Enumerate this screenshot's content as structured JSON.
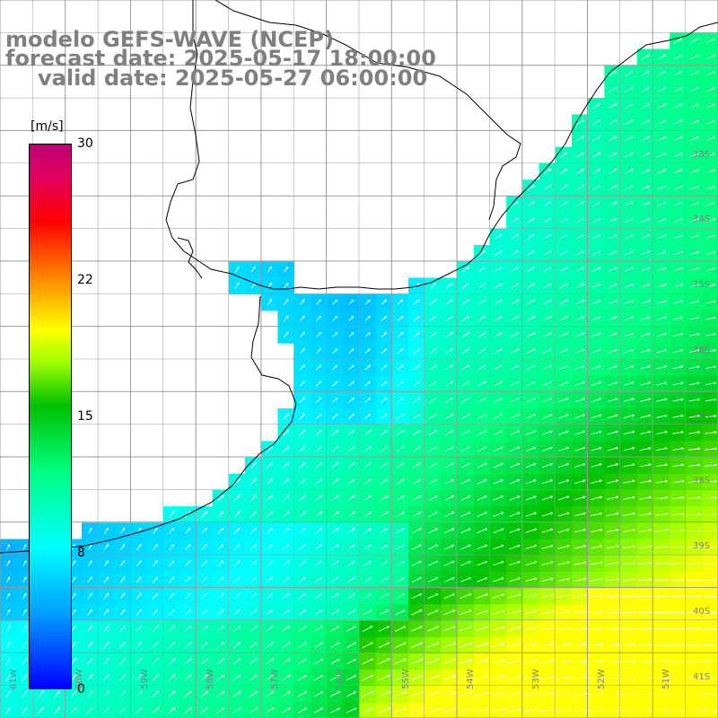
{
  "header": {
    "model": "modelo GEFS-WAVE (NCEP)",
    "forecast": "forecast date: 2025-05-17 18:00:00",
    "valid": "valid date: 2025-05-27 06:00:00"
  },
  "colorbar": {
    "unit": "[m/s]",
    "ticks": [
      {
        "value": 30,
        "label": "30"
      },
      {
        "value": 22,
        "label": "22"
      },
      {
        "value": 15,
        "label": "15"
      },
      {
        "value": 8,
        "label": "8"
      },
      {
        "value": 0,
        "label": "0"
      }
    ],
    "range": [
      0,
      30
    ]
  },
  "lat_labels": [
    "33S",
    "34S",
    "35S",
    "36S",
    "37S",
    "38S",
    "39S",
    "40S",
    "41S"
  ],
  "lon_labels": [
    "61W",
    "60W",
    "59W",
    "58W",
    "57W",
    "56W",
    "55W",
    "54W",
    "53W",
    "52W",
    "51W"
  ],
  "colors": {
    "land": "#ffffff",
    "grid": "#999999",
    "coast": "#000000",
    "arrow": "#ffffff",
    "title": "#7f7f7f"
  }
}
